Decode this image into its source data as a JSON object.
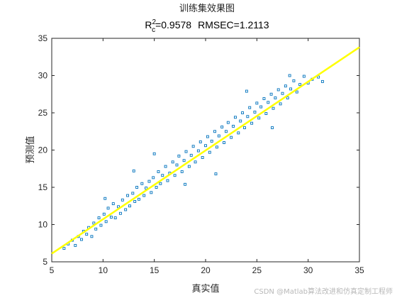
{
  "chart_data": {
    "type": "scatter",
    "title": "训练集效果图",
    "subtitle": {
      "r_main": "R",
      "r_sup": "2",
      "r_sub": "c",
      "r_value": "=0.9578",
      "rmsec": "RMSEC=1.2113"
    },
    "xlabel": "真实值",
    "ylabel": "预测值",
    "xlim": [
      5,
      35
    ],
    "ylim": [
      5,
      35
    ],
    "xticks": [
      5,
      10,
      15,
      20,
      25,
      30,
      35
    ],
    "yticks": [
      5,
      10,
      15,
      20,
      25,
      30,
      35
    ],
    "grid": false,
    "fit_line": {
      "x": [
        5,
        35
      ],
      "y": [
        6.1,
        33.8
      ]
    },
    "series": [
      {
        "marker": "square",
        "points": [
          [
            6.2,
            6.8
          ],
          [
            6.6,
            7.4
          ],
          [
            7.0,
            7.9
          ],
          [
            7.3,
            7.2
          ],
          [
            7.6,
            8.4
          ],
          [
            7.9,
            8.0
          ],
          [
            8.1,
            9.1
          ],
          [
            8.4,
            8.7
          ],
          [
            8.6,
            9.6
          ],
          [
            8.9,
            8.4
          ],
          [
            9.1,
            10.2
          ],
          [
            9.3,
            9.4
          ],
          [
            9.6,
            10.9
          ],
          [
            9.8,
            9.9
          ],
          [
            10.1,
            11.4
          ],
          [
            10.3,
            10.4
          ],
          [
            10.5,
            12.2
          ],
          [
            10.8,
            11.0
          ],
          [
            11.0,
            12.8
          ],
          [
            11.2,
            10.9
          ],
          [
            11.5,
            12.4
          ],
          [
            11.7,
            11.5
          ],
          [
            11.9,
            13.3
          ],
          [
            12.2,
            12.0
          ],
          [
            12.4,
            13.9
          ],
          [
            12.6,
            12.5
          ],
          [
            12.9,
            14.2
          ],
          [
            13.1,
            13.1
          ],
          [
            13.3,
            15.0
          ],
          [
            13.5,
            13.4
          ],
          [
            13.8,
            15.5
          ],
          [
            14.0,
            13.9
          ],
          [
            14.2,
            14.9
          ],
          [
            14.5,
            15.8
          ],
          [
            14.7,
            14.3
          ],
          [
            14.9,
            16.3
          ],
          [
            15.2,
            15.0
          ],
          [
            15.4,
            17.1
          ],
          [
            15.6,
            15.5
          ],
          [
            15.8,
            16.6
          ],
          [
            16.1,
            17.8
          ],
          [
            16.3,
            15.9
          ],
          [
            16.5,
            16.9
          ],
          [
            16.8,
            18.4
          ],
          [
            17.0,
            16.6
          ],
          [
            17.2,
            18.0
          ],
          [
            17.4,
            19.2
          ],
          [
            17.7,
            17.1
          ],
          [
            17.9,
            18.6
          ],
          [
            18.1,
            19.8
          ],
          [
            18.4,
            17.8
          ],
          [
            18.6,
            19.3
          ],
          [
            18.8,
            20.5
          ],
          [
            19.0,
            18.4
          ],
          [
            19.3,
            19.9
          ],
          [
            19.5,
            21.1
          ],
          [
            19.7,
            19.0
          ],
          [
            20.0,
            20.6
          ],
          [
            20.2,
            21.8
          ],
          [
            20.4,
            19.7
          ],
          [
            20.6,
            21.2
          ],
          [
            20.9,
            22.5
          ],
          [
            21.1,
            20.4
          ],
          [
            21.3,
            21.9
          ],
          [
            21.6,
            23.1
          ],
          [
            21.8,
            21.0
          ],
          [
            22.0,
            22.5
          ],
          [
            22.2,
            23.7
          ],
          [
            22.5,
            21.7
          ],
          [
            22.7,
            23.2
          ],
          [
            22.9,
            24.4
          ],
          [
            23.2,
            22.3
          ],
          [
            23.4,
            23.9
          ],
          [
            23.6,
            25.0
          ],
          [
            23.8,
            23.0
          ],
          [
            24.1,
            24.5
          ],
          [
            24.3,
            25.7
          ],
          [
            24.5,
            23.6
          ],
          [
            24.8,
            25.1
          ],
          [
            25.0,
            26.3
          ],
          [
            25.2,
            24.3
          ],
          [
            25.4,
            25.8
          ],
          [
            25.7,
            26.9
          ],
          [
            25.9,
            24.9
          ],
          [
            26.1,
            26.4
          ],
          [
            26.4,
            27.5
          ],
          [
            26.6,
            25.6
          ],
          [
            26.8,
            27.0
          ],
          [
            27.1,
            28.1
          ],
          [
            27.3,
            26.2
          ],
          [
            27.5,
            27.6
          ],
          [
            27.8,
            28.6
          ],
          [
            28.0,
            27.0
          ],
          [
            28.3,
            28.2
          ],
          [
            28.6,
            29.3
          ],
          [
            28.9,
            27.8
          ],
          [
            29.2,
            28.8
          ],
          [
            29.6,
            29.9
          ],
          [
            30.0,
            29.0
          ],
          [
            30.4,
            29.5
          ],
          [
            31.0,
            29.8
          ],
          [
            31.4,
            29.2
          ],
          [
            15.0,
            19.5
          ],
          [
            21.0,
            16.8
          ],
          [
            13.0,
            17.2
          ],
          [
            24.0,
            27.9
          ],
          [
            18.0,
            15.4
          ],
          [
            26.5,
            23.0
          ],
          [
            10.2,
            13.5
          ],
          [
            28.2,
            30.0
          ]
        ]
      }
    ]
  },
  "watermark": "CSDN @Matlab算法改进和仿真定制工程师"
}
